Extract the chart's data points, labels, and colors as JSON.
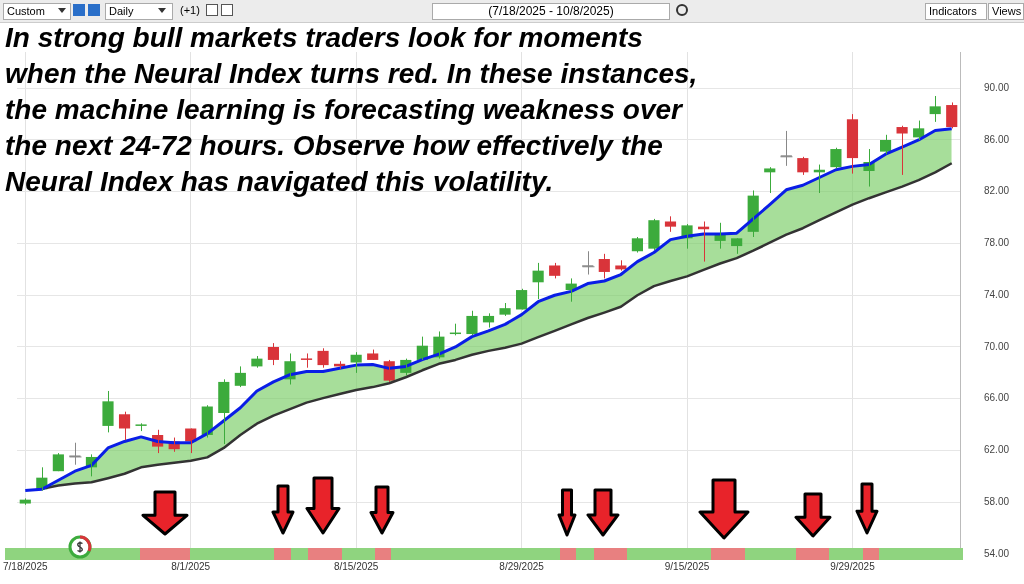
{
  "chart_data": {
    "type": "candlestick",
    "title": "(7/18/2025 - 10/8/2025)",
    "annotations": [
      "In strong bull markets traders look for moments when the Neural Index turns red. In these instances, the machine learning is forecasting weakness over the next 24-72 hours. Observe how effectively the Neural Index has navigated this volatility.",
      "Custom",
      "Daily",
      "(+1)",
      "Indicators",
      "Views"
    ],
    "categories": [
      "7/18/2025",
      null,
      null,
      null,
      null,
      null,
      null,
      null,
      null,
      null,
      "8/1/2025",
      null,
      null,
      null,
      null,
      null,
      null,
      null,
      null,
      null,
      "8/15/2025",
      null,
      null,
      null,
      null,
      null,
      null,
      null,
      null,
      null,
      "8/29/2025",
      null,
      null,
      null,
      null,
      null,
      null,
      null,
      null,
      null,
      "9/15/2025",
      null,
      null,
      null,
      null,
      null,
      null,
      null,
      null,
      null,
      "9/29/2025",
      null,
      null,
      null,
      null,
      null,
      null
    ],
    "ohlc": [
      [
        57.9,
        58.3,
        57.8,
        58.2
      ],
      [
        59.0,
        60.7,
        58.9,
        59.9
      ],
      [
        60.4,
        61.8,
        60.4,
        61.7
      ],
      [
        61.5,
        62.6,
        60.9,
        61.5
      ],
      [
        60.7,
        61.7,
        60.0,
        61.5
      ],
      [
        63.9,
        66.6,
        63.4,
        65.8
      ],
      [
        64.8,
        65.0,
        62.8,
        63.7
      ],
      [
        63.9,
        64.1,
        63.5,
        64.0
      ],
      [
        63.2,
        63.6,
        61.8,
        62.3
      ],
      [
        62.7,
        63.0,
        61.9,
        62.1
      ],
      [
        63.7,
        63.7,
        61.8,
        62.7
      ],
      [
        63.2,
        65.5,
        63.0,
        65.4
      ],
      [
        64.9,
        67.5,
        62.5,
        67.3
      ],
      [
        67.0,
        68.5,
        66.9,
        68.0
      ],
      [
        68.5,
        69.3,
        68.4,
        69.1
      ],
      [
        70.0,
        70.3,
        68.6,
        69.0
      ],
      [
        67.5,
        69.5,
        67.1,
        68.9
      ],
      [
        69.1,
        69.5,
        68.4,
        69.0
      ],
      [
        69.7,
        69.9,
        68.4,
        68.6
      ],
      [
        68.7,
        68.9,
        68.3,
        68.5
      ],
      [
        68.8,
        69.6,
        68.0,
        69.4
      ],
      [
        69.5,
        69.8,
        69.0,
        69.0
      ],
      [
        68.9,
        69.0,
        67.3,
        67.4
      ],
      [
        68.0,
        69.1,
        67.8,
        69.0
      ],
      [
        69.0,
        70.8,
        69.0,
        70.1
      ],
      [
        69.2,
        71.2,
        69.1,
        70.8
      ],
      [
        71.0,
        71.8,
        70.9,
        71.1
      ],
      [
        71.0,
        72.8,
        70.9,
        72.4
      ],
      [
        71.9,
        72.6,
        71.5,
        72.4
      ],
      [
        72.5,
        73.4,
        72.4,
        73.0
      ],
      [
        72.9,
        74.5,
        72.9,
        74.4
      ],
      [
        75.0,
        76.5,
        73.7,
        75.9
      ],
      [
        76.3,
        76.5,
        75.3,
        75.5
      ],
      [
        74.4,
        75.3,
        73.5,
        74.9
      ],
      [
        76.2,
        77.4,
        75.6,
        76.2
      ],
      [
        76.8,
        77.2,
        75.3,
        75.8
      ],
      [
        76.3,
        76.7,
        75.9,
        76.0
      ],
      [
        77.4,
        78.5,
        77.3,
        78.4
      ],
      [
        77.6,
        79.9,
        77.5,
        79.8
      ],
      [
        79.7,
        80.1,
        78.9,
        79.3
      ],
      [
        78.4,
        79.5,
        77.6,
        79.4
      ],
      [
        79.3,
        79.7,
        76.6,
        79.1
      ],
      [
        78.2,
        79.6,
        77.6,
        78.7
      ],
      [
        77.8,
        78.4,
        77.2,
        78.4
      ],
      [
        78.9,
        82.1,
        78.5,
        81.7
      ],
      [
        83.5,
        83.9,
        81.9,
        83.8
      ],
      [
        84.7,
        86.7,
        84.0,
        84.7
      ],
      [
        84.6,
        84.7,
        83.3,
        83.5
      ],
      [
        83.5,
        84.1,
        81.9,
        83.7
      ],
      [
        83.9,
        85.4,
        83.8,
        85.3
      ],
      [
        87.6,
        88.0,
        83.4,
        84.6
      ],
      [
        83.6,
        85.3,
        82.4,
        84.3
      ],
      [
        85.1,
        86.4,
        84.9,
        86.0
      ],
      [
        87.0,
        87.1,
        83.3,
        86.5
      ],
      [
        86.2,
        87.5,
        86.0,
        86.9
      ],
      [
        88.0,
        89.4,
        87.4,
        88.6
      ],
      [
        88.7,
        88.9,
        86.9,
        87.0
      ]
    ],
    "colors": [
      "#3cab3c",
      "#3cab3c",
      "#3cab3c",
      "#888888",
      "#3cab3c",
      "#3cab3c",
      "#d9343a",
      "#3cab3c",
      "#d9343a",
      "#d9343a",
      "#d9343a",
      "#3cab3c",
      "#3cab3c",
      "#3cab3c",
      "#3cab3c",
      "#d9343a",
      "#3cab3c",
      "#d9343a",
      "#d9343a",
      "#d9343a",
      "#3cab3c",
      "#d9343a",
      "#d9343a",
      "#3cab3c",
      "#3cab3c",
      "#3cab3c",
      "#3cab3c",
      "#3cab3c",
      "#3cab3c",
      "#3cab3c",
      "#3cab3c",
      "#3cab3c",
      "#d9343a",
      "#3cab3c",
      "#888888",
      "#d9343a",
      "#d9343a",
      "#3cab3c",
      "#3cab3c",
      "#d9343a",
      "#3cab3c",
      "#d9343a",
      "#3cab3c",
      "#3cab3c",
      "#3cab3c",
      "#3cab3c",
      "#888888",
      "#d9343a",
      "#3cab3c",
      "#3cab3c",
      "#d9343a",
      "#3cab3c",
      "#3cab3c",
      "#d9343a",
      "#3cab3c",
      "#3cab3c",
      "#d9343a"
    ],
    "series": [
      {
        "type": "line",
        "color": "#0a1ee6",
        "lower": [
          null,
          59.05,
          59.3,
          59.45,
          59.55,
          59.86,
          60.2,
          60.7,
          60.9,
          61.05,
          61.2,
          61.47,
          62.2,
          63.2,
          64.07,
          64.7,
          65.2,
          65.7,
          66.05,
          66.37,
          66.67,
          66.9,
          67.2,
          67.66,
          68.2,
          68.7,
          69.0,
          69.4,
          69.7,
          69.94,
          70.26,
          70.76,
          71.25,
          71.75,
          72.24,
          72.66,
          73.11,
          74.0,
          74.7,
          75.1,
          75.46,
          75.96,
          76.45,
          76.87,
          77.44,
          78.06,
          78.68,
          79.18,
          79.8,
          80.4,
          81.0,
          81.5,
          81.95,
          82.4,
          82.9,
          83.5,
          84.2
        ],
        "upper": [
          null,
          59.0,
          59.7,
          60.4,
          60.85,
          62.2,
          62.7,
          63.05,
          62.7,
          62.6,
          62.6,
          63.3,
          64.3,
          65.3,
          66.6,
          67.3,
          67.86,
          68.1,
          68.1,
          68.35,
          68.6,
          68.65,
          68.35,
          68.5,
          69.02,
          69.45,
          70.0,
          70.8,
          71.25,
          71.75,
          72.5,
          73.5,
          74.0,
          74.3,
          74.9,
          75.1,
          75.6,
          76.6,
          77.3,
          78.3,
          78.56,
          78.73,
          78.73,
          78.8,
          79.9,
          81.0,
          82.15,
          82.5,
          83.1,
          83.7,
          83.96,
          84.1,
          84.9,
          85.44,
          86.0,
          86.73,
          86.86
        ],
        "values": [
          58.9,
          59.0,
          59.7,
          60.4,
          60.85,
          62.2,
          62.7,
          63.05,
          62.7,
          62.6,
          62.6,
          63.3,
          64.3,
          65.3,
          66.6,
          67.3,
          67.86,
          68.1,
          68.1,
          68.35,
          68.6,
          68.65,
          68.35,
          68.5,
          69.02,
          69.45,
          70.0,
          70.8,
          71.25,
          71.75,
          72.5,
          73.5,
          74.0,
          74.3,
          74.9,
          75.1,
          75.6,
          76.6,
          77.3,
          78.3,
          78.56,
          78.73,
          78.73,
          78.8,
          79.9,
          81.0,
          82.15,
          82.5,
          83.1,
          83.7,
          83.96,
          84.1,
          84.9,
          85.44,
          86.0,
          86.73,
          86.86
        ]
      },
      {
        "type": "line",
        "color": "#333333",
        "values": [
          null,
          59.05,
          59.3,
          59.45,
          59.55,
          59.86,
          60.2,
          60.7,
          60.9,
          61.05,
          61.2,
          61.47,
          62.2,
          63.2,
          64.07,
          64.7,
          65.2,
          65.7,
          66.05,
          66.37,
          66.67,
          66.9,
          67.2,
          67.66,
          68.2,
          68.7,
          69.0,
          69.4,
          69.7,
          69.94,
          70.26,
          70.76,
          71.25,
          71.75,
          72.24,
          72.66,
          73.11,
          74.0,
          74.7,
          75.1,
          75.46,
          75.96,
          76.45,
          76.87,
          77.44,
          78.06,
          78.68,
          79.18,
          79.8,
          80.4,
          81.0,
          81.5,
          81.95,
          82.4,
          82.9,
          83.5,
          84.2
        ]
      }
    ],
    "ylim": [
      54,
      92.8
    ],
    "yticks": [
      {
        "value": 54,
        "label": "54.00"
      },
      {
        "value": 58,
        "label": "58.00"
      },
      {
        "value": 62,
        "label": "62.00"
      },
      {
        "value": 66,
        "label": "66.00"
      },
      {
        "value": 70,
        "label": "70.00"
      },
      {
        "value": 74,
        "label": "74.00"
      },
      {
        "value": 78,
        "label": "78.00"
      },
      {
        "value": 82,
        "label": "82.00"
      },
      {
        "value": 86,
        "label": "86.00"
      },
      {
        "value": 90,
        "label": "90.00"
      }
    ],
    "grid": true,
    "legend": false
  }
}
